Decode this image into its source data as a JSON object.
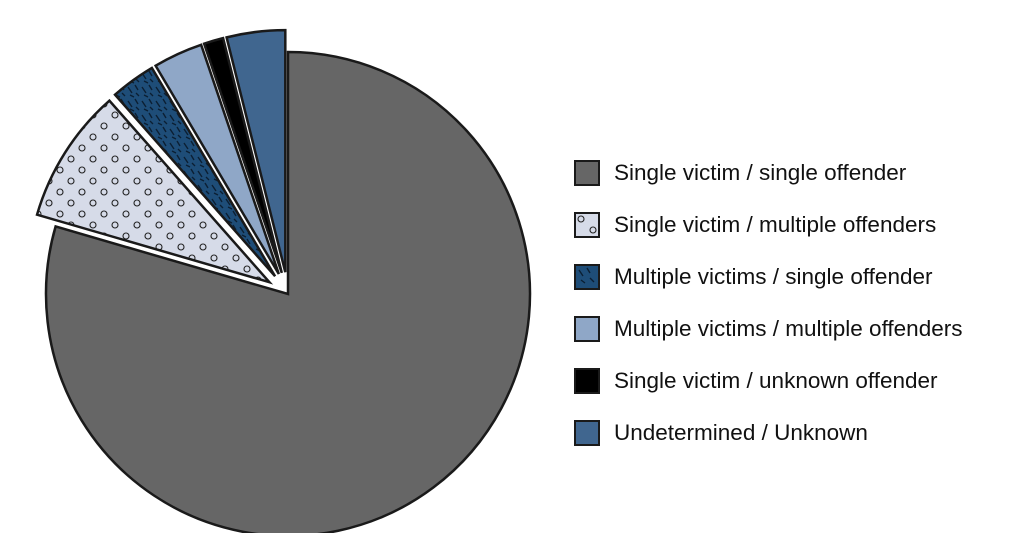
{
  "chart_data": {
    "type": "pie",
    "title": "",
    "legend_position": "right",
    "series": [
      {
        "name": "Single victim / single offender",
        "value": 79.5,
        "color": "#666666",
        "pattern": "solid",
        "exploded": false
      },
      {
        "name": "Single victim / multiple offenders",
        "value": 9.0,
        "color": "#d6dbe8",
        "pattern": "circles",
        "exploded": true
      },
      {
        "name": "Multiple victims / single offender",
        "value": 3.0,
        "color": "#1e4d78",
        "pattern": "dashes",
        "exploded": true
      },
      {
        "name": "Multiple victims / multiple offenders",
        "value": 3.3,
        "color": "#8fa7c7",
        "pattern": "solid",
        "exploded": true
      },
      {
        "name": "Single victim / unknown offender",
        "value": 1.3,
        "color": "#000000",
        "pattern": "solid",
        "exploded": true
      },
      {
        "name": "Undetermined / Unknown",
        "value": 3.9,
        "color": "#40668f",
        "pattern": "solid",
        "exploded": true
      }
    ]
  }
}
